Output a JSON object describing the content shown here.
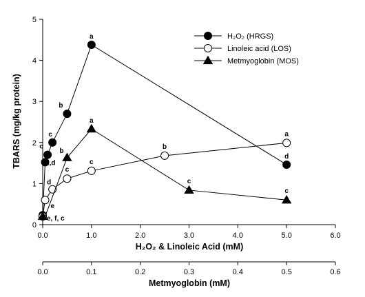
{
  "chart_data": {
    "type": "line",
    "ylabel": "TBARS (mg/kg protein)",
    "xlabel": "H₂O₂ & Linoleic Acid (mM)",
    "x2label": "Metmyoglobin (mM)",
    "ylim": [
      0,
      5
    ],
    "xlim": [
      0,
      6
    ],
    "x2lim": [
      0,
      0.6
    ],
    "y_ticks": [
      "0",
      "1",
      "2",
      "3",
      "4",
      "5"
    ],
    "x_ticks": [
      "0.0",
      "1.0",
      "2.0",
      "3.0",
      "4.0",
      "5.0",
      "6.0"
    ],
    "x2_ticks": [
      "0.0",
      "0.1",
      "0.2",
      "0.3",
      "0.4",
      "0.5",
      "0.6"
    ],
    "legend_position": "top-right",
    "series": [
      {
        "name": "H₂O₂ (HRGS)",
        "marker": "filled-circle",
        "x": [
          0,
          0.05,
          0.1,
          0.2,
          0.5,
          1.0,
          5.0
        ],
        "y": [
          0.23,
          1.52,
          1.7,
          2.0,
          2.7,
          4.38,
          1.46
        ],
        "labels": [
          "",
          "d,d",
          "c",
          "c",
          "b",
          "a",
          "d"
        ]
      },
      {
        "name": "Linoleic acid (LOS)",
        "marker": "open-circle",
        "x": [
          0,
          0.05,
          0.2,
          0.5,
          1.0,
          2.5,
          5.0
        ],
        "y": [
          0.2,
          0.6,
          0.86,
          1.12,
          1.31,
          1.68,
          1.99
        ],
        "labels": [
          "",
          "e",
          "d",
          "c",
          "c",
          "b",
          "a"
        ]
      },
      {
        "name": "Metmyoglobin (MOS)",
        "marker": "filled-triangle",
        "x": [
          0,
          0.005,
          0.05,
          0.1,
          0.3,
          0.5
        ],
        "y": [
          0.2,
          0.2,
          1.63,
          2.33,
          0.84,
          0.6
        ],
        "labels": [
          "e, f, c",
          "",
          "b",
          "a",
          "c",
          "c"
        ]
      }
    ]
  }
}
